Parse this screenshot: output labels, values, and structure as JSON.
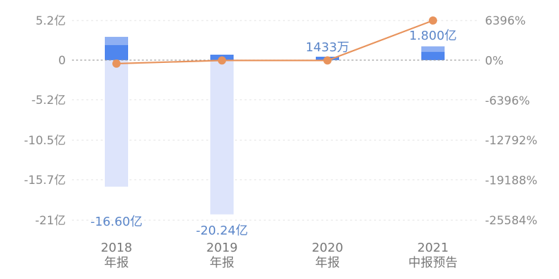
{
  "chart_data": {
    "type": "bar",
    "categories": [
      "2018\n年报",
      "2019\n年报",
      "2020\n年报",
      "2021\n中报预告"
    ],
    "series": [
      {
        "name": "",
        "kind": "bar",
        "axis": "left",
        "values": [
          -16.6,
          -20.24,
          0.1433,
          1.8
        ],
        "labels": [
          "-16.60亿",
          "-20.24亿",
          "1433万",
          "1.800亿"
        ],
        "color": "#4f86ee",
        "negative_color": "#dde4fb"
      },
      {
        "name": "",
        "kind": "line",
        "axis": "right",
        "values": [
          -500,
          0,
          0,
          6396
        ],
        "color": "#e8935c"
      }
    ],
    "y_left": {
      "ticks": [
        5.2,
        0,
        -5.2,
        -10.5,
        -15.7,
        -21
      ],
      "tick_labels": [
        "5.2亿",
        "0",
        "-5.2亿",
        "-10.5亿",
        "-15.7亿",
        "-21亿"
      ],
      "ylim": [
        -21,
        5.2
      ]
    },
    "y_right": {
      "ticks": [
        6396,
        0,
        -6396,
        -12792,
        -19188,
        -25584
      ],
      "tick_labels": [
        "6396%",
        "0%",
        "-6396%",
        "-12792%",
        "-19188%",
        "-25584%"
      ],
      "ylim": [
        -25584,
        6396
      ]
    },
    "grid": true,
    "colors": {
      "grid": "#e3e3e3",
      "zero_line": "#9a9a9a",
      "tick_text": "#8a8a8a",
      "category_text": "#777777",
      "label_text": "#5b86c9"
    }
  }
}
